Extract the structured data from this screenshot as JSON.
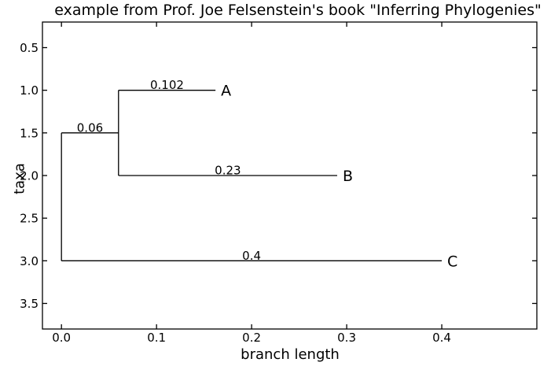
{
  "chart_data": {
    "type": "line",
    "subtype": "phylogenetic_tree",
    "title": "example from Prof. Joe Felsenstein's book \"Inferring Phylogenies\"",
    "xlabel": "branch length",
    "ylabel": "taxa",
    "xlim": [
      -0.02,
      0.5
    ],
    "ylim": [
      0.2,
      3.8
    ],
    "y_axis_inverted": true,
    "grid": false,
    "legend": null,
    "line_color": "#000000",
    "background_color": "#ffffff",
    "xticks": [
      {
        "value": 0.0,
        "label": "0.0"
      },
      {
        "value": 0.1,
        "label": "0.1"
      },
      {
        "value": 0.2,
        "label": "0.2"
      },
      {
        "value": 0.3,
        "label": "0.3"
      },
      {
        "value": 0.4,
        "label": "0.4"
      }
    ],
    "yticks": [
      {
        "value": 0.5,
        "label": "0.5"
      },
      {
        "value": 1.0,
        "label": "1.0"
      },
      {
        "value": 1.5,
        "label": "1.5"
      },
      {
        "value": 2.0,
        "label": "2.0"
      },
      {
        "value": 2.5,
        "label": "2.5"
      },
      {
        "value": 3.0,
        "label": "3.0"
      },
      {
        "value": 3.5,
        "label": "3.5"
      }
    ],
    "tree": {
      "segments": [
        {
          "x1": 0.0,
          "y1": 1.5,
          "x2": 0.0,
          "y2": 3.0
        },
        {
          "x1": 0.0,
          "y1": 1.5,
          "x2": 0.06,
          "y2": 1.5
        },
        {
          "x1": 0.06,
          "y1": 1.0,
          "x2": 0.06,
          "y2": 2.0
        },
        {
          "x1": 0.06,
          "y1": 1.0,
          "x2": 0.162,
          "y2": 1.0
        },
        {
          "x1": 0.06,
          "y1": 2.0,
          "x2": 0.29,
          "y2": 2.0
        },
        {
          "x1": 0.0,
          "y1": 3.0,
          "x2": 0.4,
          "y2": 3.0
        }
      ],
      "branch_labels": [
        {
          "text": "0.06",
          "x": 0.03,
          "y": 1.5
        },
        {
          "text": "0.102",
          "x": 0.111,
          "y": 1.0
        },
        {
          "text": "0.23",
          "x": 0.175,
          "y": 2.0
        },
        {
          "text": "0.4",
          "x": 0.2,
          "y": 3.0
        }
      ],
      "taxa": [
        {
          "name": "A",
          "tip_x": 0.162,
          "y": 1.0,
          "branch_length": 0.102
        },
        {
          "name": "B",
          "tip_x": 0.29,
          "y": 2.0,
          "branch_length": 0.23
        },
        {
          "name": "C",
          "tip_x": 0.4,
          "y": 3.0,
          "branch_length": 0.4
        }
      ]
    }
  }
}
